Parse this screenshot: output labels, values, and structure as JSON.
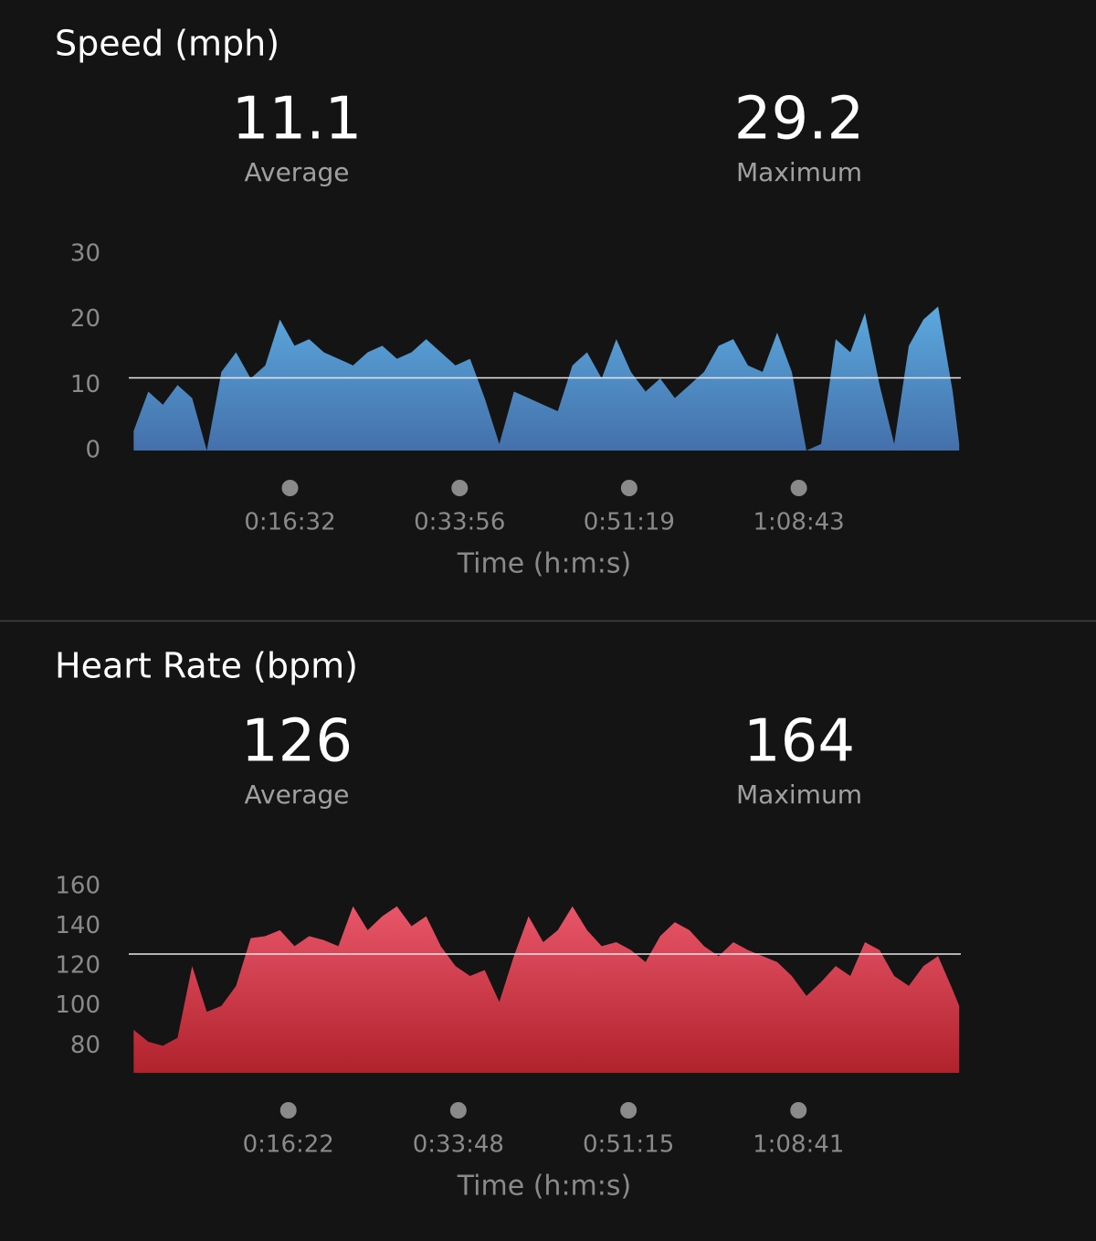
{
  "chart_data": [
    {
      "type": "area",
      "title": "Speed (mph)",
      "stats": [
        {
          "value": 11.1,
          "label": "Average"
        },
        {
          "value": 29.2,
          "label": "Maximum"
        }
      ],
      "x_label": "Time (h:m:s)",
      "x": [
        30,
        120,
        210,
        300,
        390,
        480,
        570,
        660,
        750,
        840,
        930,
        1020,
        1110,
        1200,
        1290,
        1380,
        1470,
        1560,
        1650,
        1740,
        1830,
        1920,
        2010,
        2100,
        2190,
        2280,
        2370,
        2460,
        2550,
        2640,
        2730,
        2820,
        2910,
        3000,
        3090,
        3180,
        3270,
        3360,
        3450,
        3540,
        3630,
        3720,
        3810,
        3900,
        3990,
        4080,
        4170,
        4260,
        4350,
        4440,
        4530,
        4620,
        4710,
        4800,
        4890,
        4980,
        5070,
        5110
      ],
      "values": [
        3,
        9,
        7,
        10,
        8,
        0,
        12,
        15,
        11,
        13,
        20,
        16,
        17,
        15,
        14,
        13,
        15,
        16,
        14,
        15,
        17,
        15,
        13,
        14,
        8,
        1,
        9,
        8,
        7,
        6,
        13,
        15,
        11,
        17,
        12,
        9,
        11,
        8,
        10,
        12,
        16,
        17,
        13,
        12,
        18,
        12,
        0,
        1,
        17,
        15,
        21,
        10,
        1,
        16,
        20,
        22,
        9,
        1
      ],
      "color": "#5ba9de",
      "color_bottom": "#4470aa",
      "xlim": [
        0,
        5120
      ],
      "ylim": [
        0,
        30
      ],
      "xticks": [
        {
          "value": 992,
          "label": "0:16:32"
        },
        {
          "value": 2036,
          "label": "0:33:56"
        },
        {
          "value": 3079,
          "label": "0:51:19"
        },
        {
          "value": 4123,
          "label": "1:08:43"
        }
      ],
      "yticks": [
        0,
        10,
        20,
        30
      ]
    },
    {
      "type": "area",
      "title": "Heart Rate (bpm)",
      "stats": [
        {
          "value": 126,
          "label": "Average"
        },
        {
          "value": 164,
          "label": "Maximum"
        }
      ],
      "x_label": "Time (h:m:s)",
      "x": [
        30,
        120,
        210,
        300,
        390,
        480,
        570,
        660,
        750,
        840,
        930,
        1020,
        1110,
        1200,
        1290,
        1380,
        1470,
        1560,
        1650,
        1740,
        1830,
        1920,
        2010,
        2100,
        2190,
        2280,
        2370,
        2460,
        2550,
        2640,
        2730,
        2820,
        2910,
        3000,
        3090,
        3180,
        3270,
        3360,
        3450,
        3540,
        3630,
        3720,
        3810,
        3900,
        3990,
        4080,
        4170,
        4260,
        4350,
        4440,
        4530,
        4620,
        4710,
        4800,
        4890,
        4980,
        5070,
        5110
      ],
      "values": [
        88,
        82,
        80,
        84,
        120,
        97,
        100,
        110,
        134,
        135,
        138,
        130,
        135,
        133,
        130,
        150,
        138,
        145,
        150,
        140,
        145,
        130,
        120,
        115,
        118,
        102,
        125,
        145,
        132,
        138,
        150,
        138,
        130,
        132,
        128,
        122,
        135,
        142,
        138,
        130,
        125,
        132,
        128,
        125,
        122,
        115,
        105,
        112,
        120,
        115,
        132,
        128,
        115,
        110,
        120,
        125,
        108,
        100
      ],
      "color": "#e85669",
      "color_bottom": "#b0222c",
      "xlim": [
        0,
        5120
      ],
      "ylim": [
        66.4,
        165
      ],
      "xticks": [
        {
          "value": 982,
          "label": "0:16:22"
        },
        {
          "value": 2028,
          "label": "0:33:48"
        },
        {
          "value": 3075,
          "label": "0:51:15"
        },
        {
          "value": 4121,
          "label": "1:08:41"
        }
      ],
      "yticks": [
        80,
        100,
        120,
        140,
        160
      ]
    }
  ]
}
